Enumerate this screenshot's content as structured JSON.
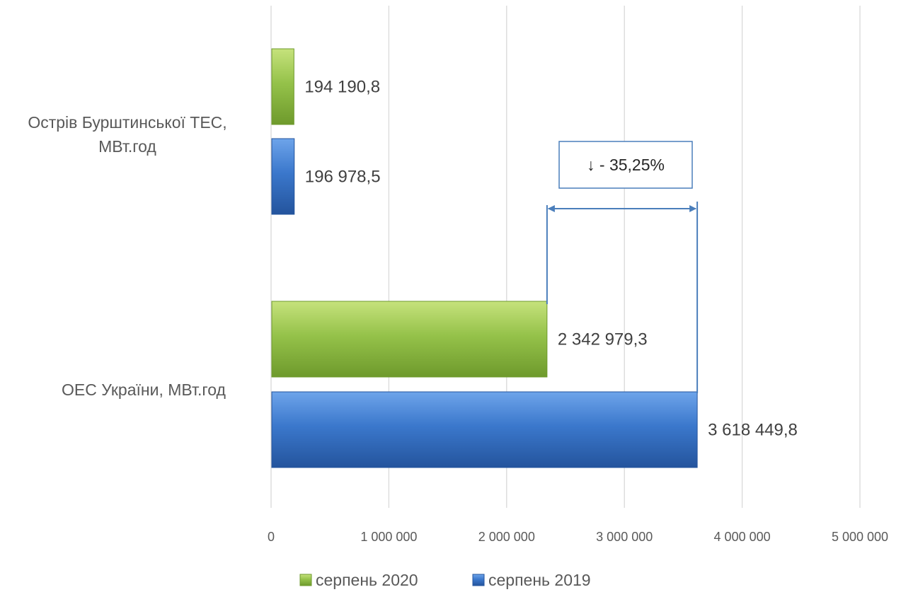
{
  "chart_data": {
    "type": "bar",
    "orientation": "horizontal",
    "categories": [
      "Острів Бурштинської ТЕС, МВт.год",
      "ОЕС України, МВт.год"
    ],
    "category_lines": [
      [
        "Острів Бурштинської ТЕС,",
        "МВт.год"
      ],
      [
        "ОЕС України, МВт.год"
      ]
    ],
    "series": [
      {
        "name": "серпень 2020",
        "values": [
          194190.8,
          2342979.3
        ],
        "labels": [
          "194 190,8",
          "2 342 979,3"
        ],
        "color": "#8cb83a"
      },
      {
        "name": "серпень 2019",
        "values": [
          196978.5,
          3618449.8
        ],
        "labels": [
          "196 978,5",
          "3 618 449,8"
        ],
        "color": "#3b78cc"
      }
    ],
    "xlim": [
      0,
      5000000
    ],
    "ticks": [
      0,
      1000000,
      2000000,
      3000000,
      4000000,
      5000000
    ],
    "tick_labels": [
      "0",
      "1 000 000",
      "2 000 000",
      "3 000 000",
      "4 000 000",
      "5 000 000"
    ],
    "grid": true,
    "legend_position": "bottom",
    "annotation": {
      "text": "↓ - 35,25%",
      "from_value": 2342979.3,
      "to_value": 3618449.8
    }
  }
}
